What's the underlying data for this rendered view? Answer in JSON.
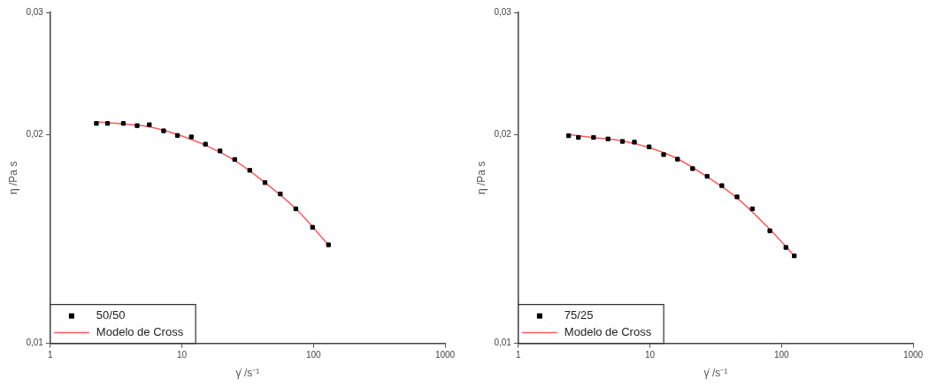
{
  "chart_data": [
    {
      "type": "scatter",
      "xlabel": "γ̇ /s⁻¹",
      "ylabel": "η /Pa s",
      "log": "xy",
      "xlim": [
        1,
        1000
      ],
      "xticks": [
        1,
        10,
        100,
        1000
      ],
      "ylim": [
        0.01,
        0.03
      ],
      "yticks": [
        {
          "value": 0.01,
          "label": "0,01"
        },
        {
          "value": 0.02,
          "label": "0,02"
        },
        {
          "value": 0.03,
          "label": "0,03"
        }
      ],
      "grid": false,
      "legend": "bottom left",
      "series": [
        {
          "name": "50/50",
          "type": "scatter",
          "marker": "square",
          "color": "#000000",
          "x": [
            2.24,
            2.72,
            3.59,
            4.57,
            5.66,
            7.26,
            9.25,
            11.8,
            15.1,
            19.5,
            25.2,
            32.8,
            42.8,
            56.0,
            73.4,
            98.4,
            130
          ],
          "values": [
            0.02075,
            0.02075,
            0.02075,
            0.0206,
            0.02066,
            0.02025,
            0.01994,
            0.01984,
            0.01937,
            0.01894,
            0.01841,
            0.01776,
            0.01705,
            0.01642,
            0.01563,
            0.0147,
            0.01387
          ]
        },
        {
          "name": "Modelo de Cross",
          "type": "line",
          "marker": "none",
          "color": "#ff5a5a",
          "x": [
            2.24,
            3.59,
            5.66,
            9.25,
            15.1,
            25.2,
            42.8,
            73.4,
            130
          ],
          "values": [
            0.02085,
            0.02072,
            0.02052,
            0.02,
            0.0193,
            0.01835,
            0.01705,
            0.01563,
            0.01387
          ]
        }
      ]
    },
    {
      "type": "scatter",
      "xlabel": "γ̇ /s⁻¹",
      "ylabel": "η /Pa s",
      "log": "xy",
      "xlim": [
        1,
        1000
      ],
      "xticks": [
        1,
        10,
        100,
        1000
      ],
      "ylim": [
        0.01,
        0.03
      ],
      "yticks": [
        {
          "value": 0.01,
          "label": "0,01"
        },
        {
          "value": 0.02,
          "label": "0,02"
        },
        {
          "value": 0.03,
          "label": "0,03"
        }
      ],
      "grid": false,
      "legend": "bottom left",
      "series": [
        {
          "name": "75/25",
          "type": "scatter",
          "marker": "square",
          "color": "#000000",
          "x": [
            2.41,
            2.86,
            3.73,
            4.8,
            6.18,
            7.62,
            9.86,
            12.7,
            16.2,
            21.1,
            27.2,
            35.2,
            45.9,
            60.0,
            81.5,
            108,
            125
          ],
          "values": [
            0.01992,
            0.01981,
            0.01981,
            0.01971,
            0.01955,
            0.0195,
            0.0192,
            0.01871,
            0.01843,
            0.01786,
            0.01741,
            0.01688,
            0.01626,
            0.01563,
            0.01453,
            0.01375,
            0.01337
          ]
        },
        {
          "name": "Modelo de Cross",
          "type": "line",
          "marker": "none",
          "color": "#ff5a5a",
          "x": [
            2.41,
            3.73,
            6.18,
            9.86,
            16.2,
            27.2,
            45.9,
            81.5,
            125
          ],
          "values": [
            0.02,
            0.0198,
            0.01958,
            0.01915,
            0.01845,
            0.01738,
            0.0162,
            0.0146,
            0.01337
          ]
        }
      ]
    }
  ]
}
